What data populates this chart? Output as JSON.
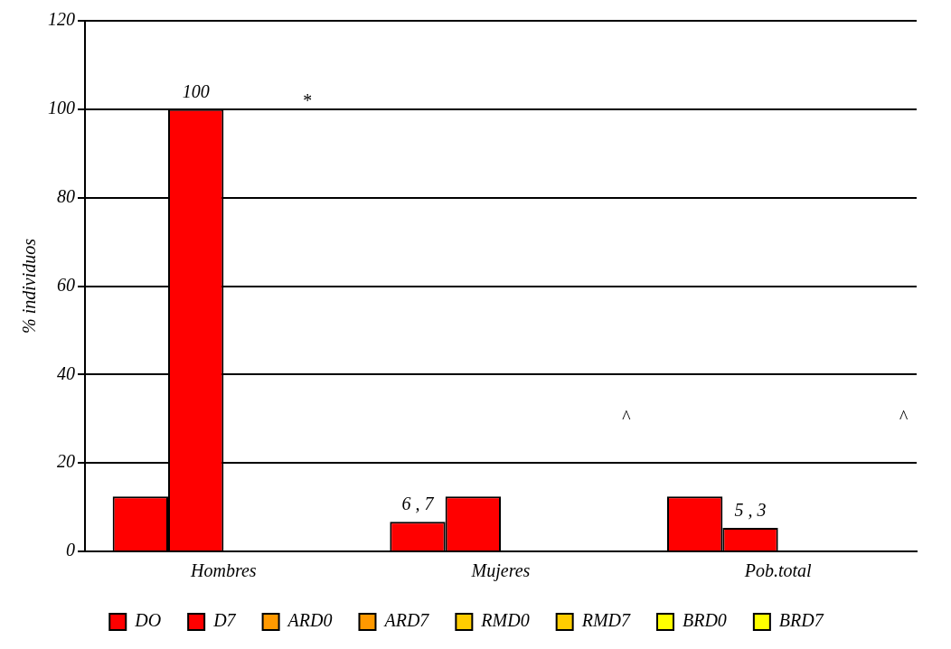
{
  "chart_data": {
    "type": "bar",
    "ylabel": "% individuos",
    "categories": [
      "Hombres",
      "Mujeres",
      "Pob.total"
    ],
    "series": [
      {
        "name": "DO",
        "color": "#ff0000",
        "values": [
          12.4,
          6.7,
          12.4
        ],
        "value_labels": [
          null,
          "6 , 7",
          null
        ]
      },
      {
        "name": "D7",
        "color": "#ff0000",
        "values": [
          100,
          12.4,
          5.3
        ],
        "value_labels": [
          "100",
          null,
          "5 , 3"
        ]
      },
      {
        "name": "ARD0",
        "color": "#ff9900",
        "values": [
          null,
          null,
          null
        ]
      },
      {
        "name": "ARD7",
        "color": "#ff9900",
        "values": [
          null,
          null,
          null
        ]
      },
      {
        "name": "RMD0",
        "color": "#ffcc00",
        "values": [
          null,
          null,
          null
        ]
      },
      {
        "name": "RMD7",
        "color": "#ffcc00",
        "values": [
          null,
          null,
          null
        ]
      },
      {
        "name": "BRD0",
        "color": "#ffff00",
        "values": [
          null,
          null,
          null
        ]
      },
      {
        "name": "BRD7",
        "color": "#ffff00",
        "values": [
          null,
          null,
          null
        ]
      }
    ],
    "ylim": [
      0,
      120
    ],
    "yticks": [
      0,
      20,
      40,
      60,
      80,
      100,
      120
    ],
    "grid": "y",
    "legend": "bottom",
    "annotations": [
      "*",
      "^",
      "^"
    ]
  }
}
